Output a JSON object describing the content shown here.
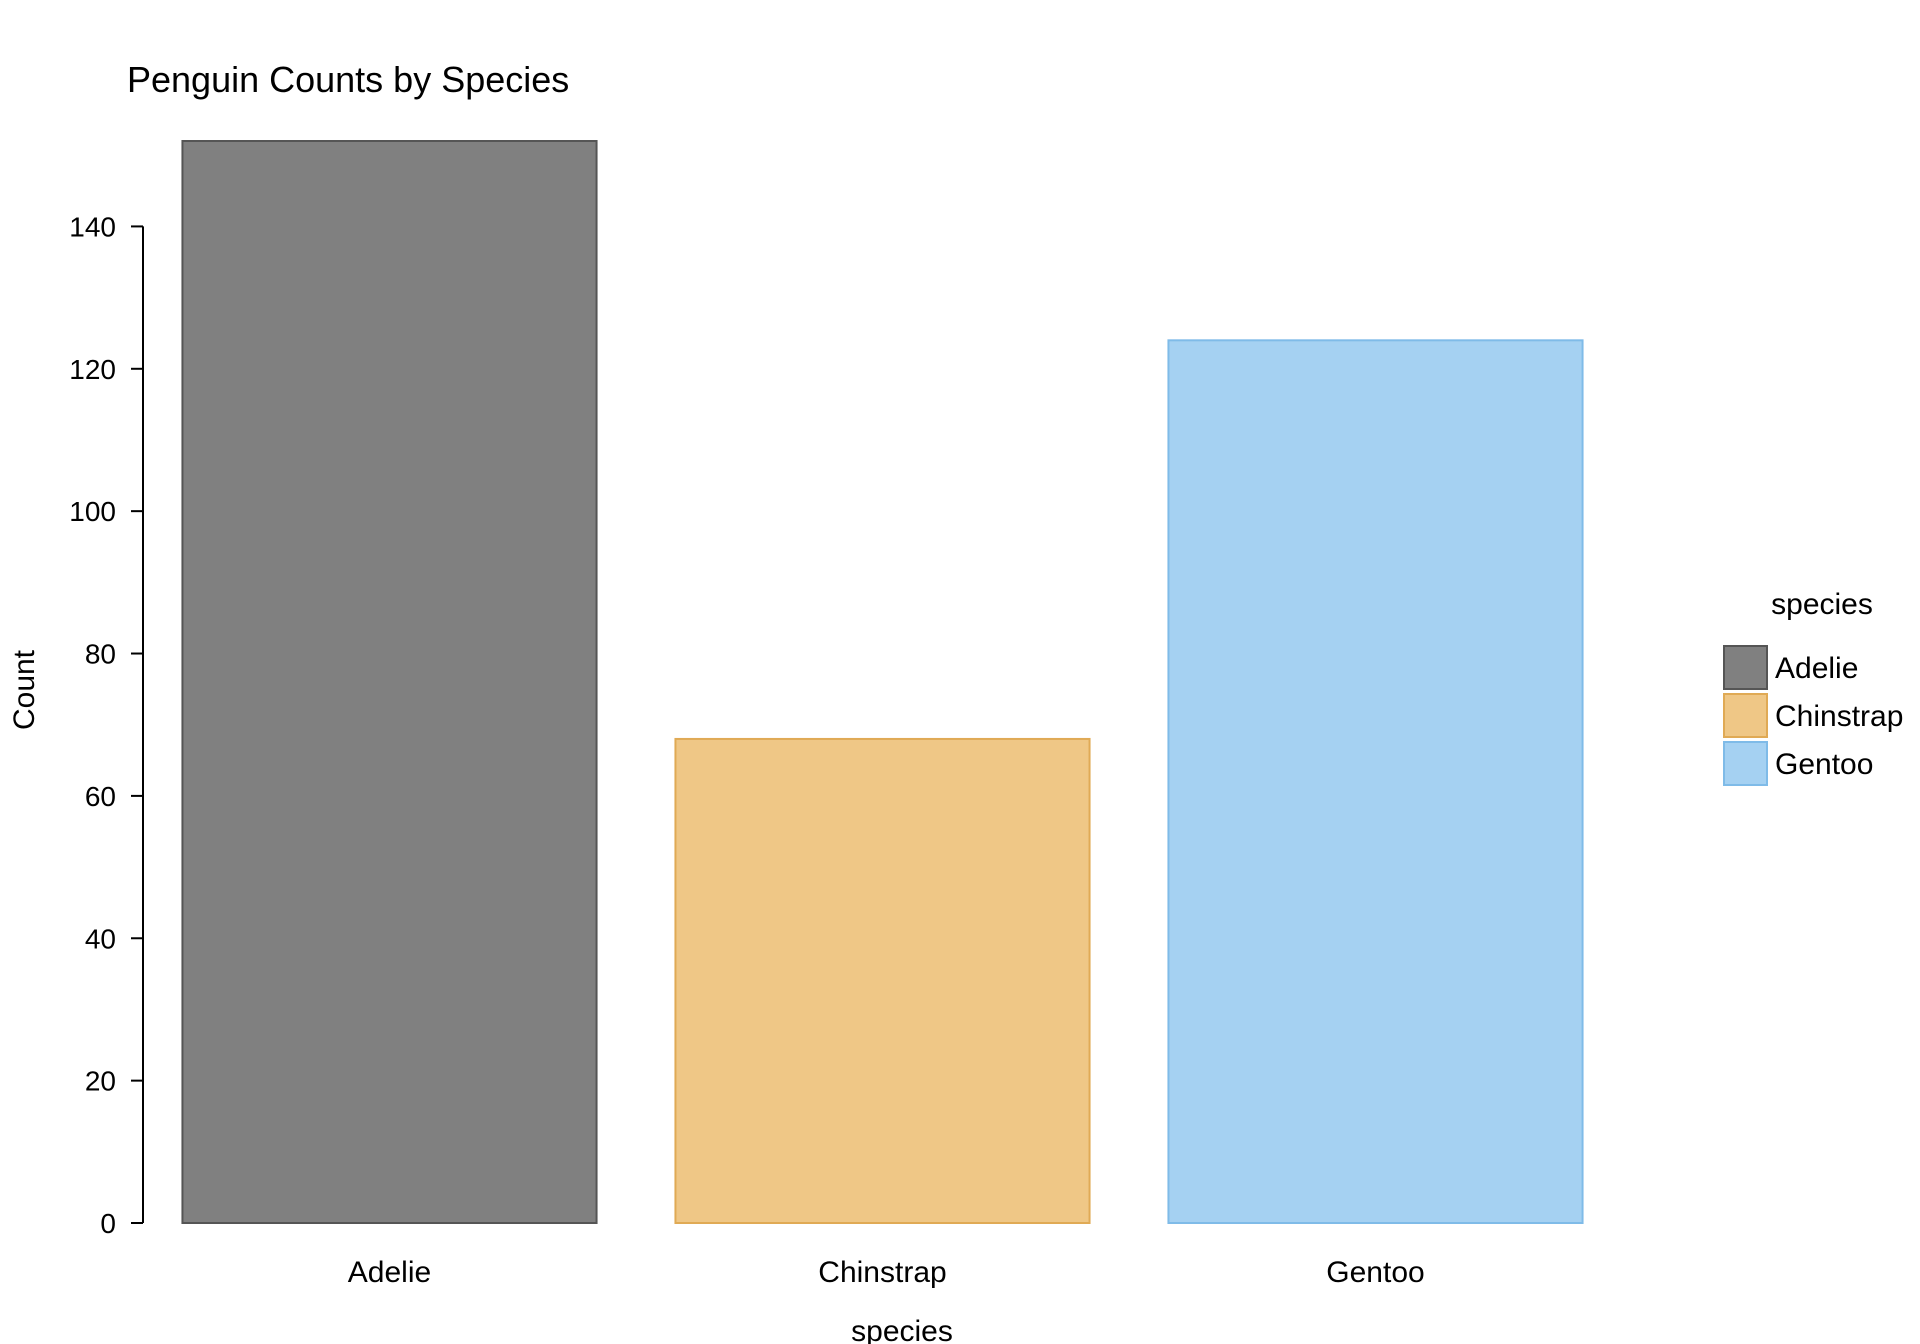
{
  "chart_data": {
    "type": "bar",
    "title": "Penguin Counts by Species",
    "xlabel": "species",
    "ylabel": "Count",
    "categories": [
      "Adelie",
      "Chinstrap",
      "Gentoo"
    ],
    "values": [
      152,
      68,
      124
    ],
    "ylim": [
      0,
      152
    ],
    "yticks": [
      0,
      20,
      40,
      60,
      80,
      100,
      120,
      140
    ],
    "grid": false,
    "legend": {
      "title": "species",
      "position": "right",
      "entries": [
        "Adelie",
        "Chinstrap",
        "Gentoo"
      ]
    },
    "colors": {
      "fills": [
        "#808080",
        "#efc786",
        "#a5d1f2"
      ],
      "strokes": [
        "#555555",
        "#e0aa55",
        "#7fbbe8"
      ],
      "axis": "#000000"
    }
  }
}
